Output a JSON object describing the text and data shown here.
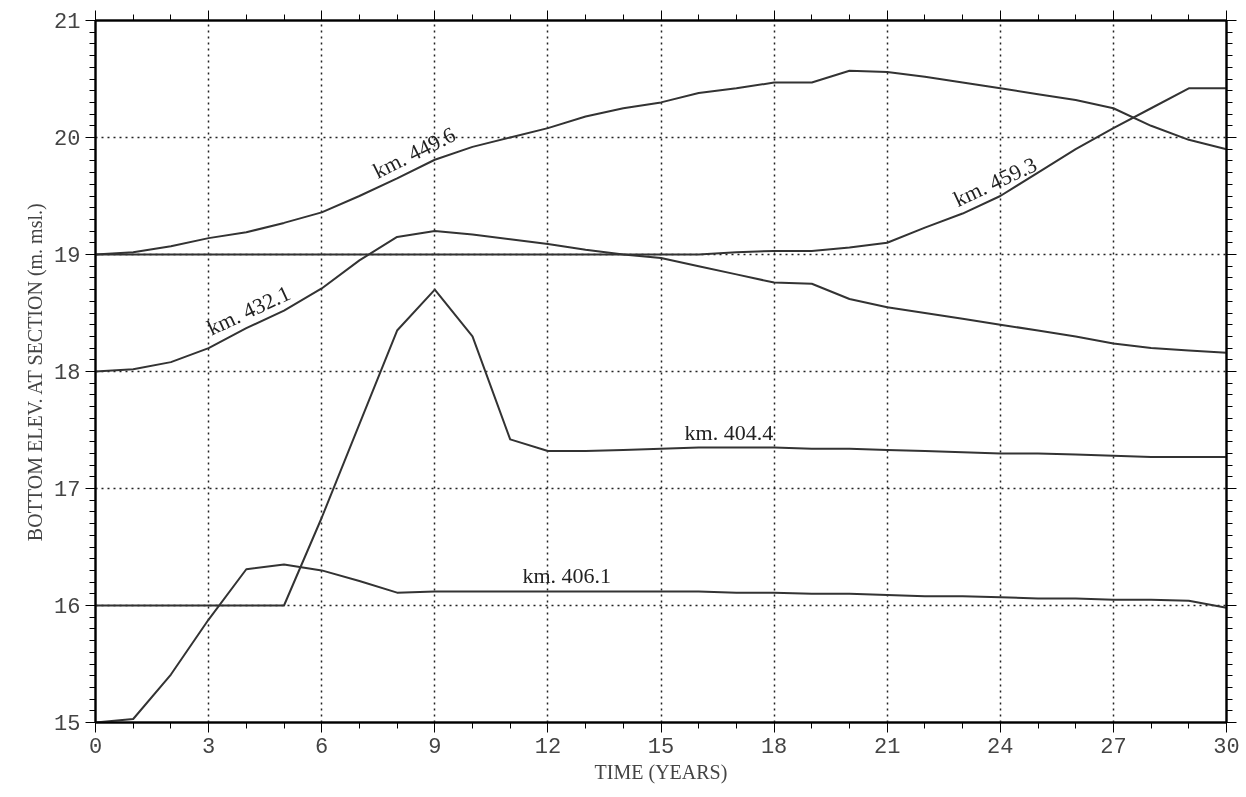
{
  "chart_data": {
    "type": "line",
    "xlabel": "TIME (YEARS)",
    "ylabel": "BOTTOM ELEV. AT SECTION (m. msl.)",
    "x": [
      0,
      1,
      2,
      3,
      4,
      5,
      6,
      7,
      8,
      9,
      10,
      11,
      12,
      13,
      14,
      15,
      16,
      17,
      18,
      19,
      20,
      21,
      22,
      23,
      24,
      25,
      26,
      27,
      28,
      29,
      30
    ],
    "series": [
      {
        "color": "#333333",
        "values": [
          19.0,
          19.02,
          19.07,
          19.14,
          19.19,
          19.27,
          19.36,
          19.5,
          19.65,
          19.81,
          19.92,
          20.0,
          20.08,
          20.18,
          20.25,
          20.3,
          20.38,
          20.42,
          20.47,
          20.47,
          20.57,
          20.56,
          20.52,
          20.47,
          20.42,
          20.37,
          20.32,
          20.25,
          20.1,
          19.98,
          19.9
        ]
      },
      {
        "color": "#333333",
        "values": [
          18.0,
          18.02,
          18.08,
          18.2,
          18.37,
          18.52,
          18.71,
          18.95,
          19.15,
          19.2,
          19.17,
          19.13,
          19.09,
          19.04,
          19.0,
          18.97,
          18.9,
          18.83,
          18.76,
          18.75,
          18.62,
          18.55,
          18.5,
          18.45,
          18.4,
          18.35,
          18.3,
          18.24,
          18.2,
          18.18,
          18.16
        ]
      },
      {
        "color": "#333333",
        "values": [
          19.0,
          19.0,
          19.0,
          19.0,
          19.0,
          19.0,
          19.0,
          19.0,
          19.0,
          19.0,
          19.0,
          19.0,
          19.0,
          19.0,
          19.0,
          19.0,
          19.0,
          19.02,
          19.03,
          19.03,
          19.06,
          19.1,
          19.23,
          19.35,
          19.5,
          19.7,
          19.9,
          20.08,
          20.25,
          20.42,
          20.42
        ]
      },
      {
        "color": "#333333",
        "values": [
          16.0,
          16.0,
          16.0,
          16.0,
          16.0,
          16.0,
          16.75,
          17.55,
          18.35,
          18.7,
          18.3,
          17.42,
          17.32,
          17.32,
          17.33,
          17.34,
          17.35,
          17.35,
          17.35,
          17.34,
          17.34,
          17.33,
          17.32,
          17.31,
          17.3,
          17.3,
          17.29,
          17.28,
          17.27,
          17.27,
          17.27
        ]
      },
      {
        "color": "#333333",
        "values": [
          15.0,
          15.03,
          15.41,
          15.88,
          16.31,
          16.35,
          16.3,
          16.21,
          16.11,
          16.12,
          16.12,
          16.12,
          16.12,
          16.12,
          16.12,
          16.12,
          16.12,
          16.11,
          16.11,
          16.1,
          16.1,
          16.09,
          16.08,
          16.08,
          16.07,
          16.06,
          16.06,
          16.05,
          16.05,
          16.04,
          15.98
        ]
      }
    ],
    "xlim": [
      0,
      30
    ],
    "ylim": [
      15,
      21
    ],
    "xticks": [
      0,
      3,
      6,
      9,
      12,
      15,
      18,
      21,
      24,
      27,
      30
    ],
    "yticks": [
      15,
      16,
      17,
      18,
      19,
      20,
      21
    ],
    "grid": true,
    "marker": "none",
    "line_style": "solid",
    "annotations": [
      {
        "text": "km. 449.6",
        "x": 8.6,
        "y": 19.75
      },
      {
        "text": "km. 432.1",
        "x": 4.2,
        "y": 18.4
      },
      {
        "text": "km. 459.3",
        "x": 24.0,
        "y": 19.5
      },
      {
        "text": "km. 404.4",
        "x": 16.8,
        "y": 17.35
      },
      {
        "text": "km. 406.1",
        "x": 12.5,
        "y": 16.12
      }
    ]
  }
}
